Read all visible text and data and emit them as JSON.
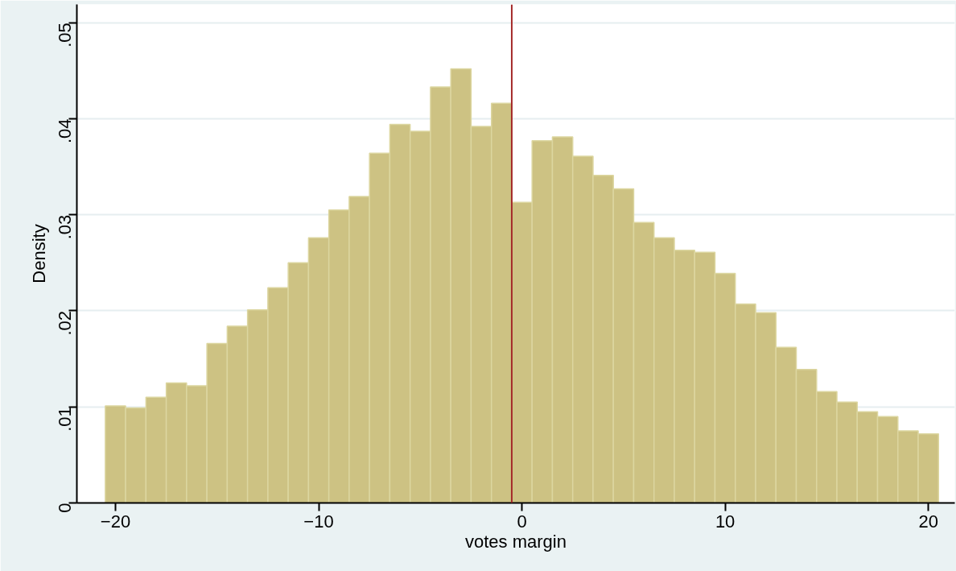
{
  "chart_data": {
    "type": "histogram",
    "xlabel": "votes margin",
    "ylabel": "Density",
    "bins": [
      -20.5,
      -19.5,
      -18.5,
      -17.5,
      -16.5,
      -15.5,
      -14.5,
      -13.5,
      -12.5,
      -11.5,
      -10.5,
      -9.5,
      -8.5,
      -7.5,
      -6.5,
      -5.5,
      -4.5,
      -3.5,
      -2.5,
      -1.5,
      -0.5,
      0.5,
      1.5,
      2.5,
      3.5,
      4.5,
      5.5,
      6.5,
      7.5,
      8.5,
      9.5,
      10.5,
      11.5,
      12.5,
      13.5,
      14.5,
      15.5,
      16.5,
      17.5,
      18.5,
      19.5,
      20.5
    ],
    "values": [
      0.0101,
      0.0099,
      0.011,
      0.0125,
      0.0122,
      0.0166,
      0.0184,
      0.0201,
      0.0224,
      0.025,
      0.0276,
      0.0305,
      0.0319,
      0.0364,
      0.0394,
      0.0387,
      0.0433,
      0.0452,
      0.0392,
      0.0416,
      0.0313,
      0.0377,
      0.0381,
      0.0361,
      0.0341,
      0.0327,
      0.0292,
      0.0276,
      0.0263,
      0.0261,
      0.0239,
      0.0207,
      0.0198,
      0.0162,
      0.0139,
      0.0116,
      0.0105,
      0.0095,
      0.009,
      0.0075,
      0.0072
    ],
    "color": "#cdc283",
    "xlim": [
      -21.9,
      21.3
    ],
    "ylim": [
      0,
      0.0519
    ],
    "xticks": [
      {
        "value": -20,
        "label": "−20"
      },
      {
        "value": -10,
        "label": "−10"
      },
      0,
      10,
      20
    ],
    "yticks": [
      0,
      {
        "value": 0.01,
        "label": ".01"
      },
      {
        "value": 0.02,
        "label": ".02"
      },
      {
        "value": 0.03,
        "label": ".03"
      },
      {
        "value": 0.04,
        "label": ".04"
      },
      {
        "value": 0.05,
        "label": ".05"
      }
    ],
    "grid": "y",
    "ref_lines": [
      {
        "axis": "x",
        "value": -0.5,
        "color": "#a52a2a"
      }
    ]
  }
}
